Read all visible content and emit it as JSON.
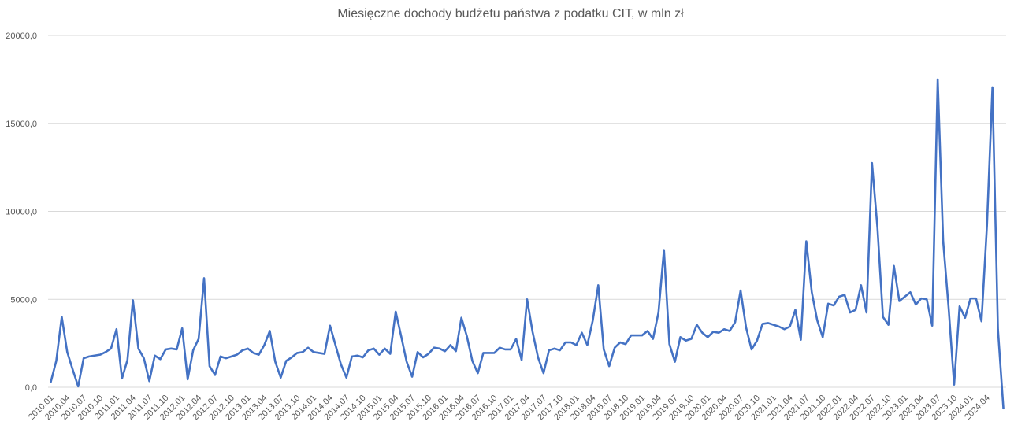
{
  "chart_data": {
    "type": "line",
    "title": "Miesięczne dochody budżetu państwa z podatku CIT, w mln zł",
    "xlabel": "",
    "ylabel": "",
    "ylim": [
      0,
      20000
    ],
    "y_ticks": [
      "0,0",
      "5000,0",
      "10000,0",
      "15000,0",
      "20000,0"
    ],
    "y_tick_values": [
      0,
      5000,
      10000,
      15000,
      20000
    ],
    "grid": true,
    "line_color": "#4472c4",
    "x_tick_labels": [
      "2010.01",
      "2010.04",
      "2010.07",
      "2010.10",
      "2011.01",
      "2011.04",
      "2011.07",
      "2011.10",
      "2012.01",
      "2012.04",
      "2012.07",
      "2012.10",
      "2013.01",
      "2013.04",
      "2013.07",
      "2013.10",
      "2014.01",
      "2014.04",
      "2014.07",
      "2014.10",
      "2015.01",
      "2015.04",
      "2015.07",
      "2015.10",
      "2016.01",
      "2016.04",
      "2016.07",
      "2016.10",
      "2017.01",
      "2017.04",
      "2017.07",
      "2017.10",
      "2018.01",
      "2018.04",
      "2018.07",
      "2018.10",
      "2019.01",
      "2019.04",
      "2019.07",
      "2019.10",
      "2020.01",
      "2020.04",
      "2020.07",
      "2020.10",
      "2021.01",
      "2021.04",
      "2021.07",
      "2021.10",
      "2022.01",
      "2022.04",
      "2022.07",
      "2022.10",
      "2023.01",
      "2023.04",
      "2023.07",
      "2023.10",
      "2024.01",
      "2024.04"
    ],
    "series": [
      {
        "name": "CIT",
        "values": [
          300,
          1500,
          4000,
          2000,
          1000,
          50,
          1650,
          1750,
          1800,
          1850,
          2000,
          2200,
          3300,
          500,
          1550,
          4950,
          2200,
          1650,
          350,
          1800,
          1600,
          2150,
          2200,
          2150,
          3350,
          450,
          2100,
          2750,
          6200,
          1200,
          700,
          1750,
          1650,
          1750,
          1850,
          2100,
          2200,
          1950,
          1850,
          2400,
          3200,
          1450,
          550,
          1500,
          1700,
          1950,
          2000,
          2250,
          2000,
          1950,
          1900,
          3500,
          2400,
          1300,
          550,
          1750,
          1800,
          1700,
          2100,
          2200,
          1850,
          2200,
          1900,
          4300,
          2900,
          1450,
          600,
          2000,
          1700,
          1900,
          2250,
          2200,
          2050,
          2400,
          2050,
          3950,
          2900,
          1500,
          800,
          1950,
          1950,
          1950,
          2250,
          2150,
          2150,
          2750,
          1550,
          5000,
          3150,
          1700,
          800,
          2100,
          2200,
          2100,
          2550,
          2550,
          2400,
          3100,
          2400,
          3800,
          5800,
          2150,
          1200,
          2250,
          2550,
          2450,
          2950,
          2950,
          2950,
          3200,
          2750,
          4250,
          7800,
          2450,
          1450,
          2850,
          2650,
          2750,
          3550,
          3100,
          2850,
          3150,
          3100,
          3300,
          3200,
          3700,
          5500,
          3400,
          2150,
          2650,
          3600,
          3650,
          3550,
          3450,
          3300,
          3450,
          4400,
          2700,
          8300,
          5400,
          3800,
          2850,
          4750,
          4650,
          5150,
          5250,
          4250,
          4400,
          5800,
          4250,
          12750,
          9050,
          4000,
          3550,
          6900,
          4900,
          5150,
          5400,
          4700,
          5050,
          5000,
          3500,
          17500,
          8300,
          4500,
          150,
          4600,
          3950,
          5050,
          5050,
          3750,
          9200,
          17050,
          3300,
          -1200
        ]
      }
    ]
  }
}
